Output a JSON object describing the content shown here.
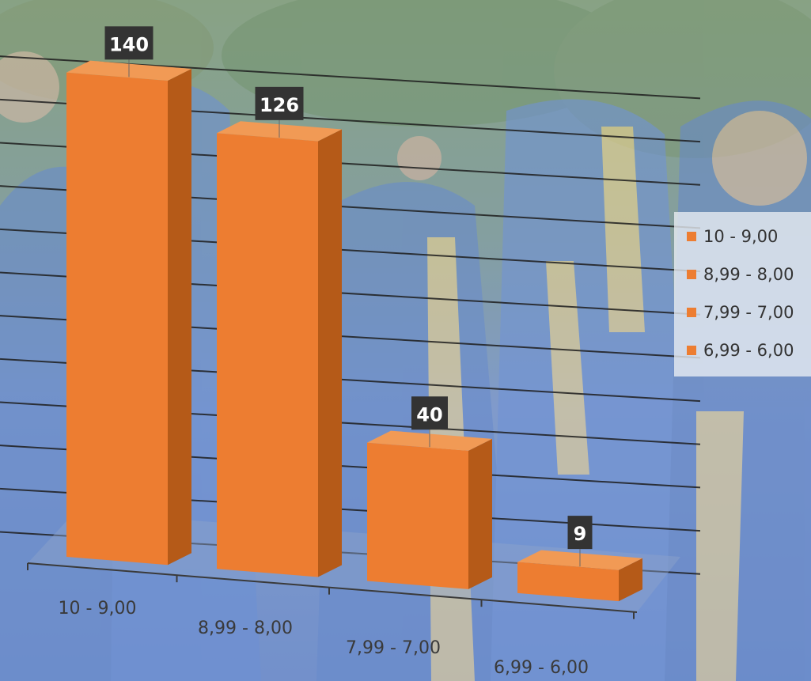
{
  "background": {
    "photo": "graduates-tossing-caps",
    "foliage_color": "#3f6b3a",
    "gown_color": "#2f5fb8",
    "sash_color": "#e9c66a",
    "overlay_color": "#ffffff"
  },
  "chart_data": {
    "type": "bar",
    "style": "3d-column",
    "categories": [
      "10 - 9,00",
      "8,99 - 8,00",
      "7,99 - 7,00",
      "6,99 - 6,00"
    ],
    "values": [
      140,
      126,
      40,
      9
    ],
    "data_labels": [
      "140",
      "126",
      "40",
      "9"
    ],
    "title": "",
    "xlabel": "",
    "ylabel": "",
    "ylim": [
      0,
      150
    ],
    "grid": true,
    "bar_color": "#ed7d31",
    "bar_side_color": "#b55a18",
    "bar_top_color": "#f19a55",
    "label_box_color": "#333333",
    "legend": {
      "placement": "right",
      "entries": [
        "10 - 9,00",
        "8,99 - 8,00",
        "7,99 - 7,00",
        "6,99 - 6,00"
      ]
    }
  }
}
